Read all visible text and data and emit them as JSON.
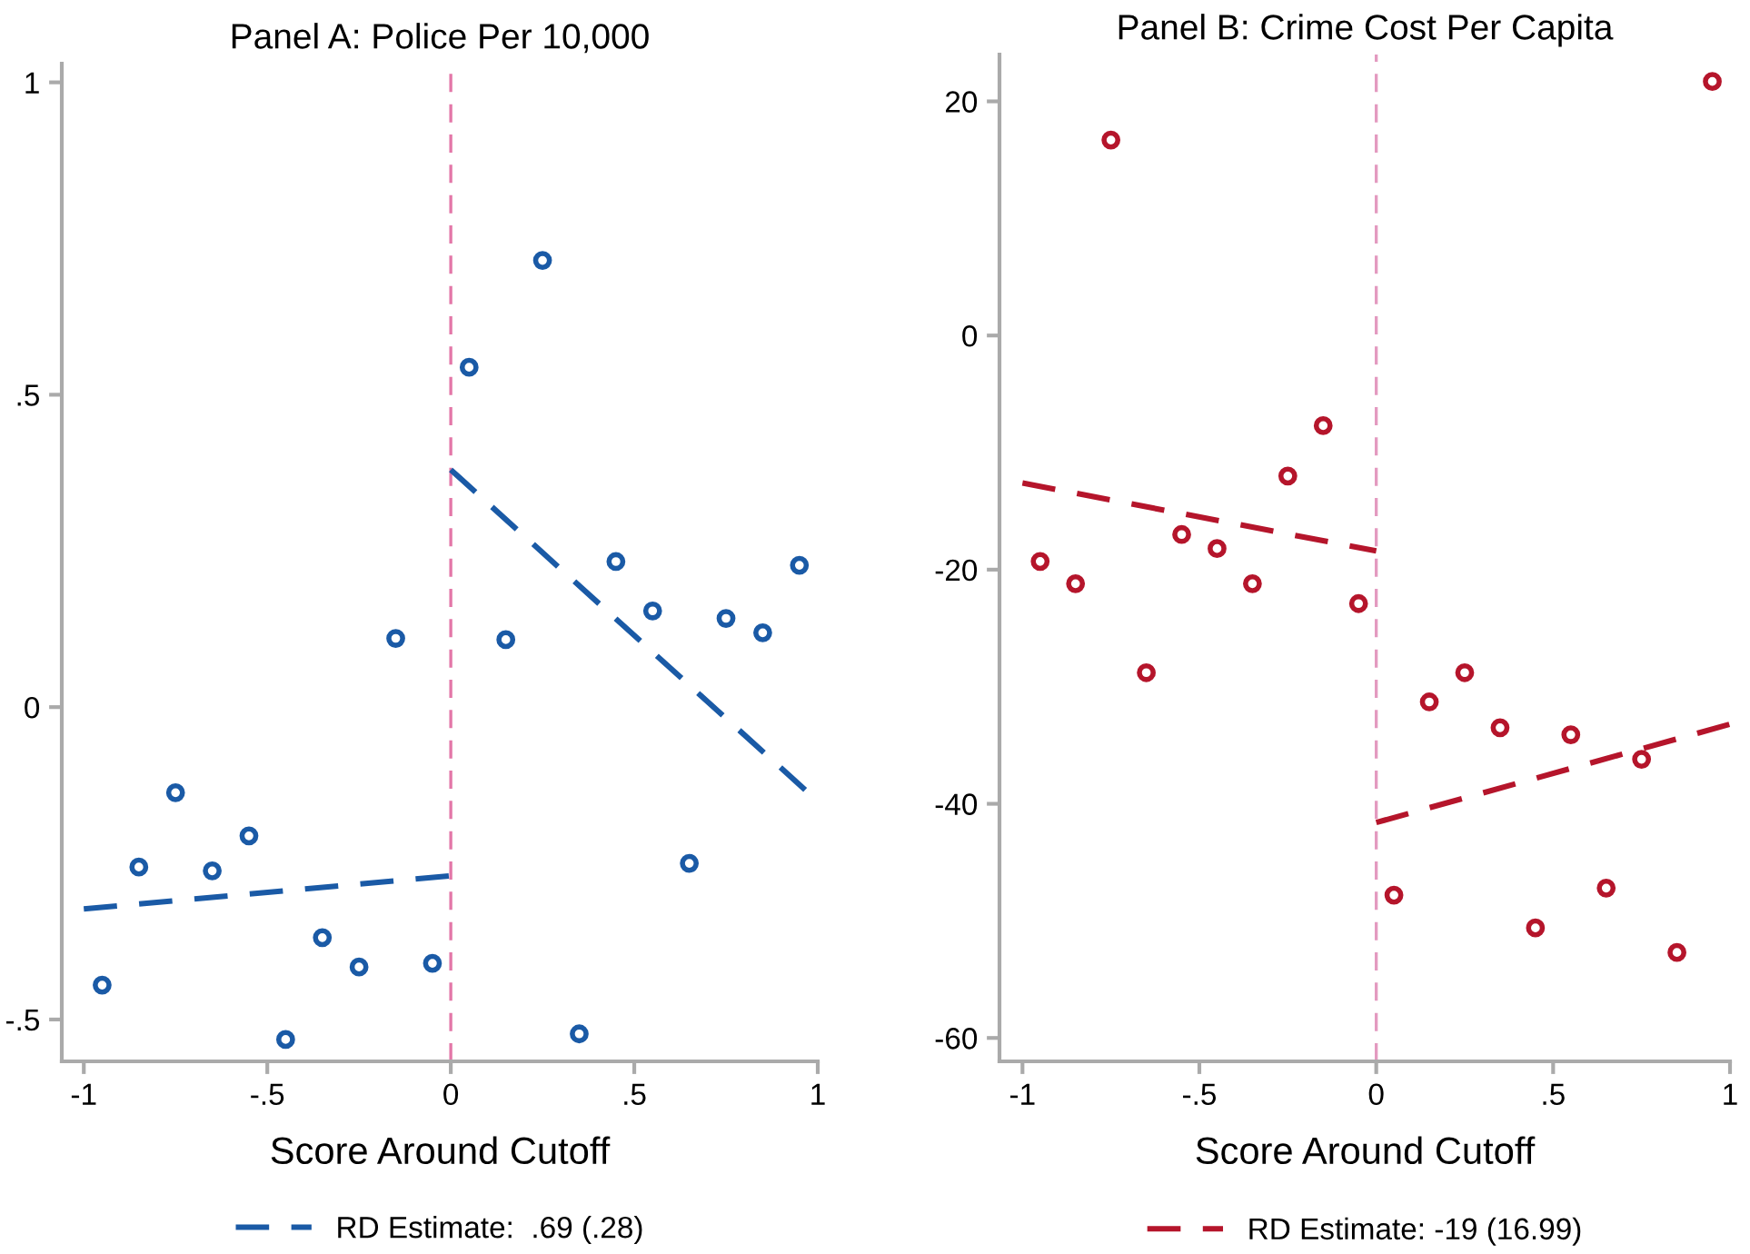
{
  "chart_data": [
    {
      "type": "scatter",
      "title": "Panel A: Police Per 10,000",
      "xlabel": "Score Around Cutoff",
      "xlim": [
        -1.06,
        1.0
      ],
      "ylim": [
        -0.567,
        1.03
      ],
      "xticks": [
        {
          "value": -1,
          "label": "-1"
        },
        {
          "value": -0.5,
          "label": "-.5"
        },
        0,
        {
          "value": 0.5,
          "label": ".5"
        },
        1
      ],
      "yticks": [
        {
          "value": -0.5,
          "label": "-.5"
        },
        0,
        {
          "value": 0.5,
          "label": ".5"
        },
        1
      ],
      "grid": false,
      "legend": "bottom",
      "ref_lines": [
        {
          "axis": "x",
          "value": 0,
          "color": "#e377a8",
          "line_style": "dashed"
        }
      ],
      "series": [
        {
          "color": "#1a5aa6",
          "marker": "circle",
          "x": [
            -0.95,
            -0.85,
            -0.75,
            -0.65,
            -0.55,
            -0.45,
            -0.35,
            -0.25,
            -0.15,
            -0.05,
            0.05,
            0.15,
            0.25,
            0.35,
            0.45,
            0.55,
            0.65,
            0.75,
            0.85,
            0.95
          ],
          "values": [
            -0.445,
            -0.256,
            -0.137,
            -0.262,
            -0.206,
            -0.532,
            -0.369,
            -0.416,
            0.11,
            -0.41,
            0.544,
            0.108,
            0.715,
            -0.523,
            0.233,
            0.154,
            -0.25,
            0.142,
            0.119,
            0.227
          ]
        },
        {
          "type": "line",
          "name": "RD Estimate:  .69 (.28)",
          "color": "#1a5aa6",
          "line_style": "dashed",
          "x": [
            -1,
            0
          ],
          "values": [
            -0.323,
            -0.27
          ]
        },
        {
          "type": "line",
          "color": "#1a5aa6",
          "line_style": "dashed",
          "x": [
            0,
            0.98
          ],
          "values": [
            0.38,
            -0.14
          ]
        }
      ]
    },
    {
      "type": "scatter",
      "title": "Panel B: Crime Cost Per Capita",
      "xlabel": "Score Around Cutoff",
      "xlim": [
        -1.065,
        1.0
      ],
      "ylim": [
        -62,
        24
      ],
      "xticks": [
        {
          "value": -1,
          "label": "-1"
        },
        {
          "value": -0.5,
          "label": "-.5"
        },
        0,
        {
          "value": 0.5,
          "label": ".5"
        },
        1
      ],
      "yticks": [
        -60,
        -40,
        -20,
        0,
        20
      ],
      "grid": false,
      "legend": "bottom",
      "ref_lines": [
        {
          "axis": "x",
          "value": 0,
          "color": "#e39ac0",
          "line_style": "dashed"
        }
      ],
      "series": [
        {
          "color": "#b5152b",
          "marker": "circle",
          "x": [
            -0.95,
            -0.85,
            -0.75,
            -0.65,
            -0.55,
            -0.45,
            -0.35,
            -0.25,
            -0.15,
            -0.05,
            0.05,
            0.15,
            0.25,
            0.35,
            0.45,
            0.55,
            0.65,
            0.75,
            0.85,
            0.95
          ],
          "values": [
            -19.3,
            -21.2,
            16.7,
            -28.8,
            -17.0,
            -18.2,
            -21.2,
            -12.0,
            -7.7,
            -22.9,
            -47.8,
            -31.3,
            -28.8,
            -33.5,
            -50.6,
            -34.1,
            -47.2,
            -36.2,
            -52.7,
            21.7
          ]
        },
        {
          "type": "line",
          "name": "RD Estimate: -19 (16.99)",
          "color": "#b5152b",
          "line_style": "dashed",
          "x": [
            -1,
            0
          ],
          "values": [
            -12.6,
            -18.4
          ]
        },
        {
          "type": "line",
          "color": "#b5152b",
          "line_style": "dashed",
          "x": [
            0,
            1
          ],
          "values": [
            -41.6,
            -33.2
          ]
        }
      ]
    }
  ]
}
